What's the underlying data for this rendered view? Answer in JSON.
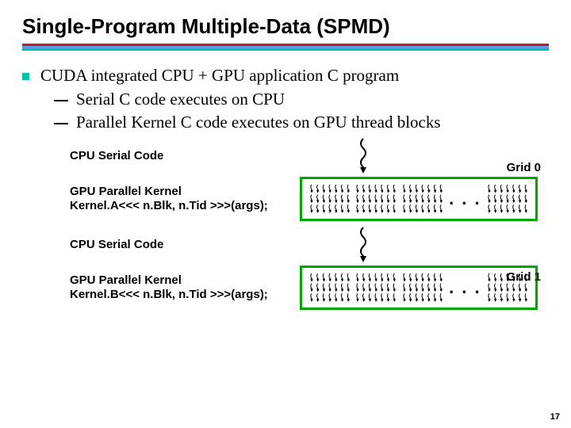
{
  "title": "Single-Program Multiple-Data (SPMD)",
  "divider_colors": {
    "c1": "#b22222",
    "c2": "#6495ed",
    "c3": "#00c2a8"
  },
  "teal": "#00c2a8",
  "green": "#00a600",
  "bullet": "CUDA integrated CPU + GPU application C program",
  "sub1": "Serial C code executes on CPU",
  "sub2": "Parallel Kernel C code executes on GPU thread blocks",
  "seq": {
    "cpu_label": "CPU Serial Code",
    "gpu_label": "GPU Parallel Kernel",
    "kernelA": "Kernel.A<<< n.Blk, n.Tid >>>(args);",
    "kernelB": "Kernel.B<<< n.Blk, n.Tid >>>(args);",
    "grid0": "Grid 0",
    "grid1": "Grid 1",
    "ellipsis": ". . ."
  },
  "thread_rows": 3,
  "thread_cols": 7,
  "page": "17"
}
